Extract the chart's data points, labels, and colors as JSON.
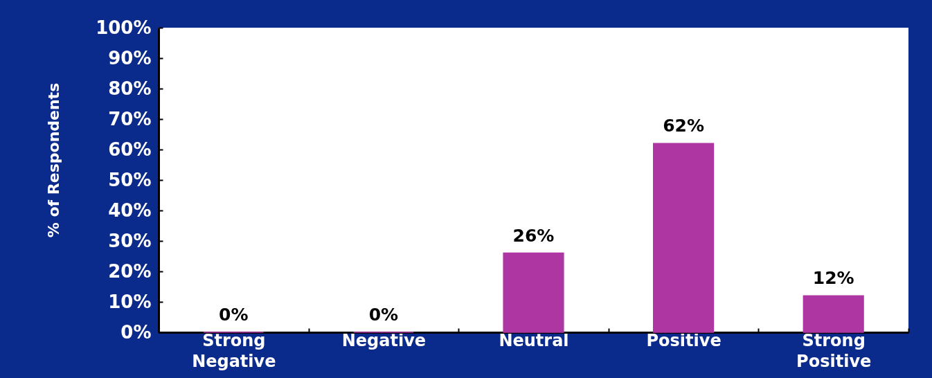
{
  "chart_data": {
    "type": "bar",
    "ylabel": "% of Respondents",
    "categories": [
      "Strong Negative",
      "Negative",
      "Neutral",
      "Positive",
      "Strong Positive"
    ],
    "values": [
      0,
      0,
      26,
      62,
      12
    ],
    "value_labels": [
      "0%",
      "0%",
      "26%",
      "62%",
      "12%"
    ],
    "color": "#ad36a3",
    "ylim": [
      0,
      100
    ],
    "yticks": [
      {
        "value": 0,
        "label": "0%"
      },
      {
        "value": 10,
        "label": "10%"
      },
      {
        "value": 20,
        "label": "20%"
      },
      {
        "value": 30,
        "label": "30%"
      },
      {
        "value": 40,
        "label": "40%"
      },
      {
        "value": 50,
        "label": "50%"
      },
      {
        "value": 60,
        "label": "60%"
      },
      {
        "value": 70,
        "label": "70%"
      },
      {
        "value": 80,
        "label": "80%"
      },
      {
        "value": 90,
        "label": "90%"
      },
      {
        "value": 100,
        "label": "100%"
      }
    ]
  }
}
